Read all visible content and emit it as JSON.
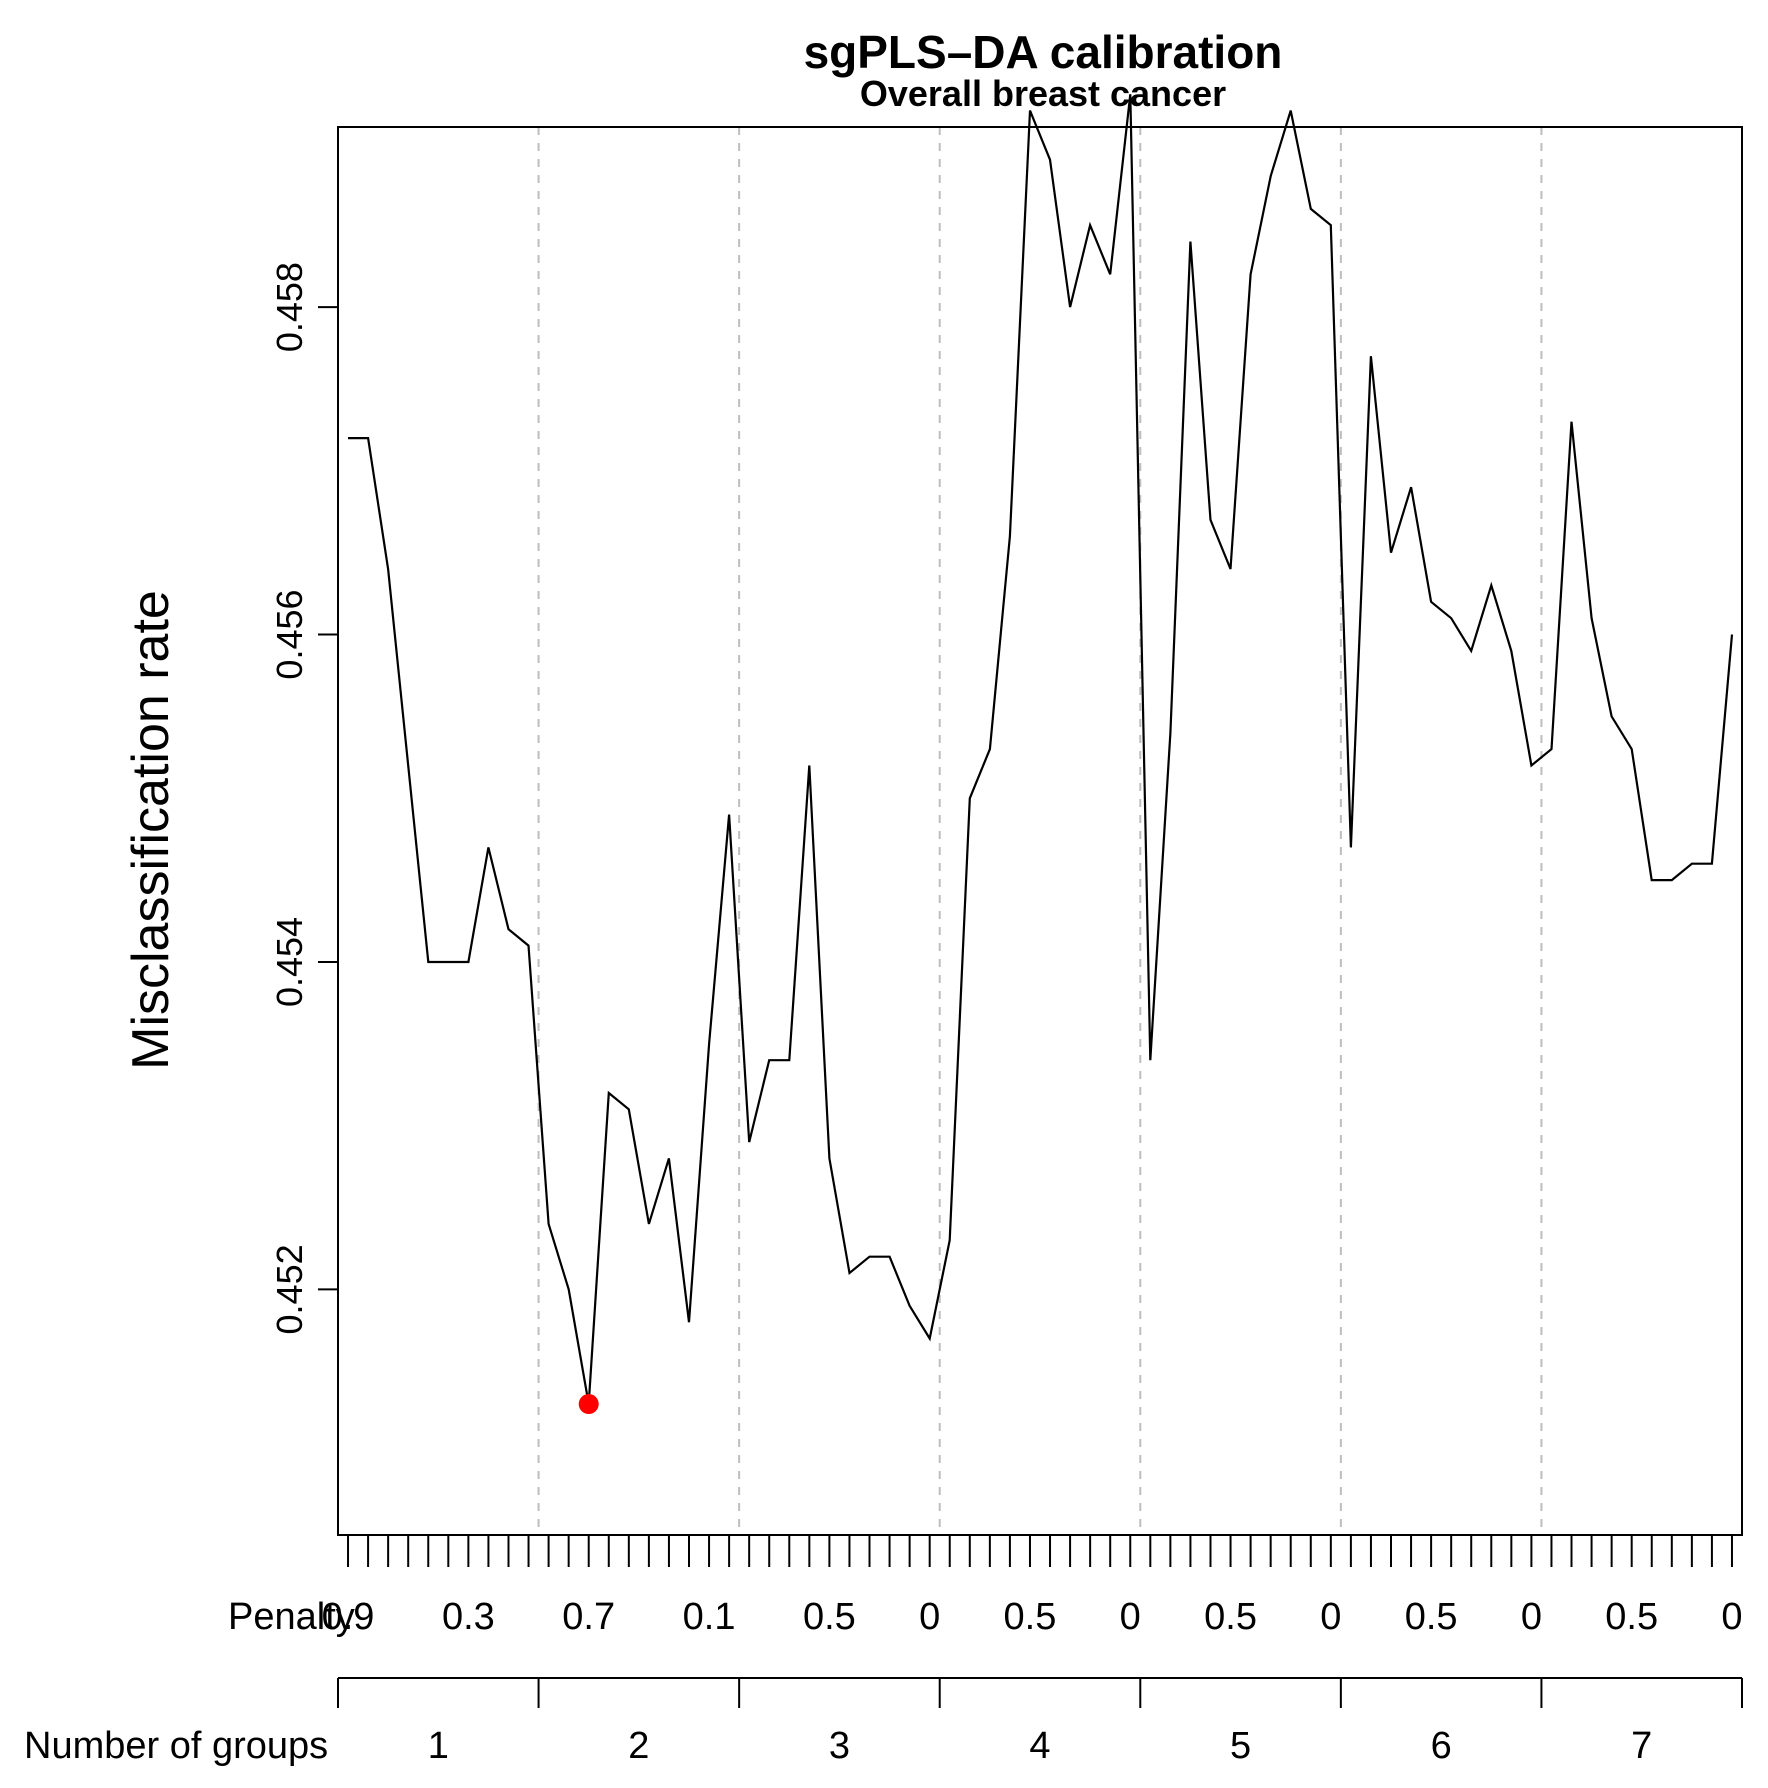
{
  "chart_data": {
    "type": "line",
    "title": "sgPLS–DA calibration",
    "subtitle": "Overall breast cancer",
    "ylabel": "Misclassification rate",
    "ylim": [
      0.4505,
      0.4591
    ],
    "y_ticks": [
      0.452,
      0.454,
      0.456,
      0.458
    ],
    "y_tick_labels": [
      "0.452",
      "0.454",
      "0.456",
      "0.458"
    ],
    "grid": "vertical dashed lines at group boundaries",
    "penalty_axis": {
      "label": "Penalty",
      "tick_labels": [
        {
          "label": "0.9",
          "index": 1
        },
        {
          "label": "0.3",
          "index": 7
        },
        {
          "label": "0.7",
          "index": 13
        },
        {
          "label": "0.1",
          "index": 19
        },
        {
          "label": "0.5",
          "index": 25
        },
        {
          "label": "0",
          "index": 30
        },
        {
          "label": "0.5",
          "index": 35
        },
        {
          "label": "0",
          "index": 40
        },
        {
          "label": "0.5",
          "index": 45
        },
        {
          "label": "0",
          "index": 50
        },
        {
          "label": "0.5",
          "index": 55
        },
        {
          "label": "0",
          "index": 60
        },
        {
          "label": "0.5",
          "index": 65
        },
        {
          "label": "0",
          "index": 70
        }
      ]
    },
    "groups_axis": {
      "label": "Number of groups",
      "groups": [
        "1",
        "2",
        "3",
        "4",
        "5",
        "6",
        "7"
      ],
      "boundaries": [
        0.5,
        10.5,
        20.5,
        30.5,
        40.5,
        50.5,
        60.5,
        70.5
      ]
    },
    "x_range": [
      0.5,
      70.5
    ],
    "values": [
      0.4572,
      0.4572,
      0.4564,
      0.4552,
      0.454,
      0.454,
      0.454,
      0.4547,
      0.4542,
      0.4541,
      0.4524,
      0.452,
      0.4513,
      0.4532,
      0.4531,
      0.4524,
      0.4528,
      0.4518,
      0.4535,
      0.4549,
      0.4529,
      0.4534,
      0.4534,
      0.4552,
      0.4528,
      0.4521,
      0.4522,
      0.4522,
      0.4519,
      0.4517,
      0.4523,
      0.455,
      0.4553,
      0.4566,
      0.4592,
      0.4589,
      0.458,
      0.4585,
      0.4582,
      0.4593,
      0.4534,
      0.4554,
      0.4584,
      0.4567,
      0.4564,
      0.4582,
      0.4588,
      0.4592,
      0.4586,
      0.4585,
      0.4547,
      0.4577,
      0.4565,
      0.4569,
      0.4562,
      0.4561,
      0.4559,
      0.4563,
      0.4559,
      0.4552,
      0.4553,
      0.4573,
      0.4561,
      0.4555,
      0.4553,
      0.4545,
      0.4545,
      0.4546,
      0.4546,
      0.456
    ],
    "highlight": {
      "index": 13,
      "value": 0.4513,
      "color": "#ff0000"
    },
    "line_color": "#000000",
    "grid_color": "#bebebe"
  }
}
